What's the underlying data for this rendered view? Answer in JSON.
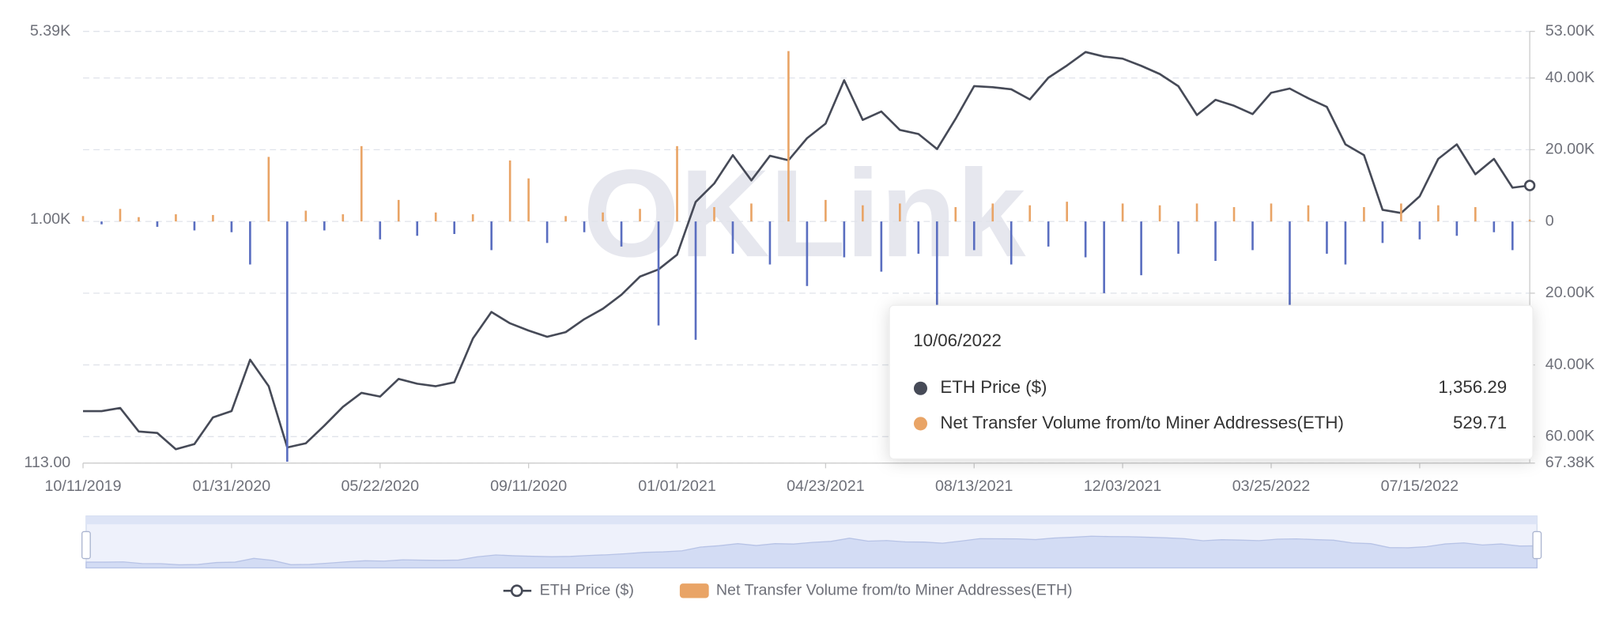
{
  "chart_data": {
    "type": "bar-line",
    "watermark": "OKLink",
    "x": [
      "10/11/2019",
      "10/25/2019",
      "11/08/2019",
      "11/22/2019",
      "12/06/2019",
      "12/20/2019",
      "01/03/2020",
      "01/17/2020",
      "01/31/2020",
      "02/14/2020",
      "02/28/2020",
      "03/13/2020",
      "03/27/2020",
      "04/10/2020",
      "04/24/2020",
      "05/08/2020",
      "05/22/2020",
      "06/05/2020",
      "06/19/2020",
      "07/03/2020",
      "07/17/2020",
      "07/31/2020",
      "08/14/2020",
      "08/28/2020",
      "09/11/2020",
      "09/25/2020",
      "10/09/2020",
      "10/23/2020",
      "11/06/2020",
      "11/20/2020",
      "12/04/2020",
      "12/18/2020",
      "01/01/2021",
      "01/15/2021",
      "01/29/2021",
      "02/12/2021",
      "02/26/2021",
      "03/12/2021",
      "03/26/2021",
      "04/09/2021",
      "04/23/2021",
      "05/07/2021",
      "05/21/2021",
      "06/04/2021",
      "06/18/2021",
      "07/02/2021",
      "07/16/2021",
      "07/30/2021",
      "08/13/2021",
      "08/27/2021",
      "09/10/2021",
      "09/24/2021",
      "10/08/2021",
      "10/22/2021",
      "11/05/2021",
      "11/19/2021",
      "12/03/2021",
      "12/17/2021",
      "12/31/2021",
      "01/14/2022",
      "01/28/2022",
      "02/11/2022",
      "02/25/2022",
      "03/11/2022",
      "03/25/2022",
      "04/08/2022",
      "04/22/2022",
      "05/06/2022",
      "05/20/2022",
      "06/03/2022",
      "06/17/2022",
      "07/01/2022",
      "07/15/2022",
      "07/29/2022",
      "08/12/2022",
      "08/26/2022",
      "09/09/2022",
      "09/23/2022",
      "10/06/2022"
    ],
    "xlim": [
      "10/11/2019",
      "10/06/2022"
    ],
    "xticks": [
      "10/11/2019",
      "01/31/2020",
      "05/22/2020",
      "09/11/2020",
      "01/01/2021",
      "04/23/2021",
      "08/13/2021",
      "12/03/2021",
      "03/25/2022",
      "07/15/2022"
    ],
    "series": [
      {
        "name": "ETH Price ($)",
        "type": "line",
        "color": "#464a57",
        "values": [
          180,
          180,
          185,
          150,
          148,
          128,
          134,
          170,
          180,
          285,
          225,
          130,
          135,
          158,
          187,
          212,
          205,
          240,
          230,
          225,
          233,
          345,
          437,
          395,
          370,
          350,
          365,
          410,
          450,
          510,
          600,
          640,
          730,
          1170,
          1380,
          1780,
          1420,
          1770,
          1700,
          2070,
          2360,
          3480,
          2440,
          2630,
          2230,
          2150,
          1880,
          2460,
          3300,
          3270,
          3210,
          2930,
          3560,
          3970,
          4480,
          4300,
          4220,
          3960,
          3680,
          3300,
          2550,
          2920,
          2770,
          2570,
          3110,
          3230,
          2960,
          2740,
          1960,
          1780,
          1090,
          1060,
          1230,
          1720,
          1960,
          1500,
          1720,
          1330,
          1356.29
        ]
      },
      {
        "name": "Net Transfer Volume from/to Miner Addresses(ETH)",
        "type": "bar",
        "axis": "y2",
        "color": "#e9a466",
        "negative_color": "#5a6ec0",
        "values": [
          1500,
          -800,
          3500,
          1200,
          -1500,
          2000,
          -2500,
          1800,
          -3000,
          -12000,
          18000,
          -67000,
          3000,
          -2500,
          2000,
          21000,
          -5000,
          6000,
          -4000,
          2500,
          -3500,
          2000,
          -8000,
          17000,
          12000,
          -6000,
          1500,
          -3000,
          2500,
          -7000,
          3500,
          -29000,
          21000,
          -33000,
          4000,
          -9000,
          5000,
          -12000,
          47500,
          -18000,
          6000,
          -10000,
          4500,
          -14000,
          5000,
          -9000,
          -24000,
          4000,
          -8000,
          5000,
          -12000,
          4500,
          -7000,
          5500,
          -10000,
          -20000,
          5000,
          -15000,
          4500,
          -9000,
          5000,
          -11000,
          4000,
          -8000,
          5000,
          -24000,
          4500,
          -9000,
          -12000,
          4000,
          -6000,
          5000,
          -5000,
          4500,
          -4000,
          4000,
          -3000,
          -8000,
          529.71
        ]
      }
    ],
    "ylim": [
      113,
      5390
    ],
    "log_scale": true,
    "yticks": [
      {
        "value": 5390,
        "label": "5.39K"
      },
      {
        "value": 1000,
        "label": "1.00K"
      },
      {
        "value": 113,
        "label": "113.00"
      }
    ],
    "y2lim": [
      -67380,
      53000
    ],
    "y2ticks": [
      {
        "value": 53000,
        "label": "53.00K"
      },
      {
        "value": 40000,
        "label": "40.00K"
      },
      {
        "value": 20000,
        "label": "20.00K"
      },
      0,
      {
        "value": -20000,
        "label": "20.00K"
      },
      {
        "value": -40000,
        "label": "40.00K"
      },
      {
        "value": -60000,
        "label": "60.00K"
      },
      {
        "value": -67380,
        "label": "67.38K"
      }
    ],
    "grid": true,
    "legend": "bottom",
    "tooltip": {
      "date": "10/06/2022",
      "items": [
        {
          "label": "ETH Price ($)",
          "value": "1,356.29"
        },
        {
          "label": "Net Transfer Volume from/to Miner Addresses(ETH)",
          "value": "529.71"
        }
      ]
    }
  }
}
